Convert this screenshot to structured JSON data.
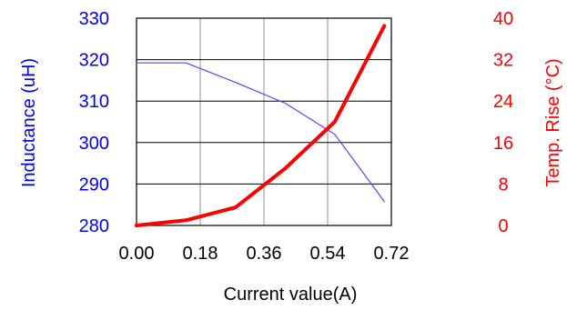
{
  "chart_data": {
    "type": "line",
    "title": "",
    "xlabel": "Current value(A)",
    "xlim": [
      0,
      0.72
    ],
    "x_ticks": [
      "0.00",
      "0.18",
      "0.36",
      "0.54",
      "0.72"
    ],
    "grid": true,
    "y_axes": [
      {
        "side": "left",
        "label": "Inductance (uH)",
        "color": "#0000ff",
        "lim": [
          280,
          330
        ],
        "ticks": [
          "280",
          "290",
          "300",
          "310",
          "320",
          "330"
        ]
      },
      {
        "side": "right",
        "label": "Temp. Rise (°C)",
        "color": "#ff0000",
        "lim": [
          0,
          40
        ],
        "ticks": [
          "0",
          "8",
          "16",
          "24",
          "32",
          "40"
        ]
      }
    ],
    "series": [
      {
        "axis": "left",
        "color": "#4a4aff",
        "x": [
          0.0,
          0.14,
          0.28,
          0.42,
          0.56,
          0.7
        ],
        "y": [
          319.2,
          319.2,
          314.5,
          309.5,
          302.0,
          285.8
        ]
      },
      {
        "axis": "right",
        "color": "#ff0000",
        "x": [
          0.0,
          0.14,
          0.28,
          0.42,
          0.56,
          0.7
        ],
        "y": [
          0.0,
          1.0,
          3.5,
          11.0,
          20.0,
          38.5
        ]
      }
    ]
  }
}
